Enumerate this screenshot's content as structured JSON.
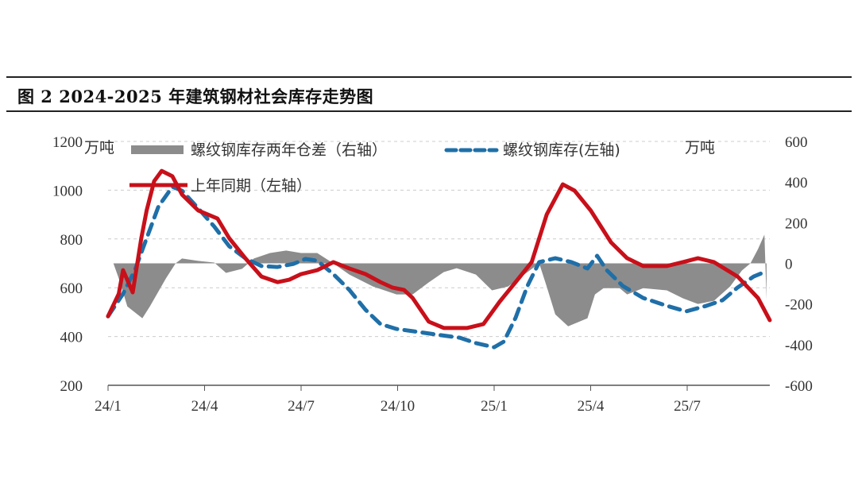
{
  "title": "图 2 2024-2025 年建筑钢材社会库存走势图",
  "chart_data": {
    "type": "line+area",
    "title": "图 2 2024-2025 年建筑钢材社会库存走势图",
    "left_unit": "万吨",
    "right_unit": "万吨",
    "left_ylim": [
      200,
      1200
    ],
    "left_ticks": [
      "200",
      "400",
      "600",
      "800",
      "1000",
      "1200"
    ],
    "right_ylim": [
      -600,
      600
    ],
    "right_ticks": [
      "-600",
      "-400",
      "-200",
      "0",
      "200",
      "400",
      "600"
    ],
    "x_ticks": [
      "24/1",
      "24/4",
      "24/7",
      "24/10",
      "25/1",
      "25/4",
      "25/7"
    ],
    "x_tick_dates": [
      "2024-01-01",
      "2024-04-01",
      "2024-07-01",
      "2024-10-01",
      "2025-01-01",
      "2025-04-01",
      "2025-07-01"
    ],
    "x_range": [
      "2024-01-01",
      "2025-09-18"
    ],
    "grid": "horizontal dashed",
    "legend_position": "top",
    "series": [
      {
        "name": "螺纹钢库存两年仓差（右轴）",
        "type": "area",
        "axis": "right",
        "color": "#8c8c8c",
        "x": [
          "2024-01-06",
          "2024-01-11",
          "2024-01-19",
          "2024-02-03",
          "2024-02-10",
          "2024-02-25",
          "2024-03-04",
          "2024-03-10",
          "2024-03-25",
          "2024-04-10",
          "2024-04-21",
          "2024-05-06",
          "2024-05-17",
          "2024-06-02",
          "2024-06-17",
          "2024-07-01",
          "2024-07-16",
          "2024-08-01",
          "2024-08-16",
          "2024-09-08",
          "2024-09-30",
          "2024-10-15",
          "2024-10-30",
          "2024-11-14",
          "2024-11-26",
          "2024-12-14",
          "2024-12-29",
          "2025-01-14",
          "2025-01-29",
          "2025-02-13",
          "2025-02-20",
          "2025-02-28",
          "2025-03-10",
          "2025-03-28",
          "2025-04-05",
          "2025-04-13",
          "2025-04-28",
          "2025-05-05",
          "2025-05-20",
          "2025-06-12",
          "2025-06-27",
          "2025-07-11",
          "2025-07-26",
          "2025-08-11",
          "2025-08-22",
          "2025-08-30",
          "2025-09-07",
          "2025-09-13",
          "2025-09-15"
        ],
        "values": [
          0,
          -74,
          -212,
          -270,
          -212,
          -74,
          0,
          24,
          12,
          4,
          -47,
          -27,
          24,
          51,
          63,
          51,
          51,
          0,
          -55,
          -114,
          -153,
          -153,
          -94,
          -43,
          -24,
          -55,
          -133,
          -114,
          -55,
          0,
          -114,
          -251,
          -310,
          -270,
          -153,
          -122,
          -122,
          -153,
          -122,
          -133,
          -172,
          -200,
          -184,
          -114,
          -35,
          0,
          70,
          141,
          -180
        ]
      },
      {
        "name": "螺纹钢库存(左轴)",
        "type": "line-dashed",
        "axis": "left",
        "color": "#1f6fa8",
        "x": [
          "2024-01-01",
          "2024-01-15",
          "2024-01-26",
          "2024-02-07",
          "2024-02-18",
          "2024-03-01",
          "2024-03-10",
          "2024-03-25",
          "2024-04-10",
          "2024-04-24",
          "2024-05-09",
          "2024-05-24",
          "2024-06-09",
          "2024-06-24",
          "2024-07-05",
          "2024-07-16",
          "2024-08-01",
          "2024-08-16",
          "2024-09-01",
          "2024-09-15",
          "2024-09-30",
          "2024-10-15",
          "2024-11-07",
          "2024-11-29",
          "2024-12-14",
          "2025-01-01",
          "2025-01-10",
          "2025-01-21",
          "2025-02-02",
          "2025-02-13",
          "2025-02-28",
          "2025-03-13",
          "2025-03-28",
          "2025-04-07",
          "2025-04-16",
          "2025-05-01",
          "2025-05-20",
          "2025-06-12",
          "2025-06-30",
          "2025-07-19",
          "2025-08-04",
          "2025-08-18",
          "2025-09-03",
          "2025-09-14"
        ],
        "values": [
          483,
          575,
          672,
          803,
          933,
          1014,
          998,
          926,
          851,
          770,
          721,
          689,
          685,
          698,
          718,
          711,
          656,
          591,
          510,
          451,
          431,
          422,
          408,
          395,
          373,
          356,
          379,
          477,
          607,
          705,
          721,
          705,
          679,
          731,
          672,
          607,
          558,
          526,
          503,
          526,
          549,
          601,
          646,
          666
        ]
      },
      {
        "name": "上年同期（左轴）",
        "type": "line",
        "axis": "left",
        "color": "#c8101a",
        "x": [
          "2024-01-01",
          "2024-01-11",
          "2024-01-15",
          "2024-01-24",
          "2024-02-02",
          "2024-02-07",
          "2024-02-14",
          "2024-02-21",
          "2024-03-01",
          "2024-03-10",
          "2024-03-25",
          "2024-04-13",
          "2024-04-24",
          "2024-05-09",
          "2024-05-24",
          "2024-06-09",
          "2024-06-20",
          "2024-07-01",
          "2024-07-16",
          "2024-08-01",
          "2024-08-16",
          "2024-09-01",
          "2024-09-15",
          "2024-09-26",
          "2024-10-07",
          "2024-10-15",
          "2024-10-30",
          "2024-11-14",
          "2024-12-06",
          "2024-12-21",
          "2025-01-06",
          "2025-01-21",
          "2025-02-06",
          "2025-02-20",
          "2025-03-05",
          "2025-03-16",
          "2025-04-01",
          "2025-04-20",
          "2025-05-05",
          "2025-05-20",
          "2025-06-12",
          "2025-06-27",
          "2025-07-11",
          "2025-07-26",
          "2025-08-18",
          "2025-09-07",
          "2025-09-18"
        ],
        "values": [
          483,
          575,
          672,
          581,
          803,
          917,
          1037,
          1079,
          1057,
          982,
          917,
          884,
          803,
          721,
          646,
          623,
          633,
          656,
          672,
          705,
          679,
          656,
          623,
          601,
          591,
          558,
          461,
          435,
          435,
          451,
          542,
          623,
          705,
          900,
          1024,
          998,
          917,
          786,
          721,
          689,
          689,
          705,
          721,
          705,
          646,
          558,
          467
        ]
      }
    ]
  }
}
